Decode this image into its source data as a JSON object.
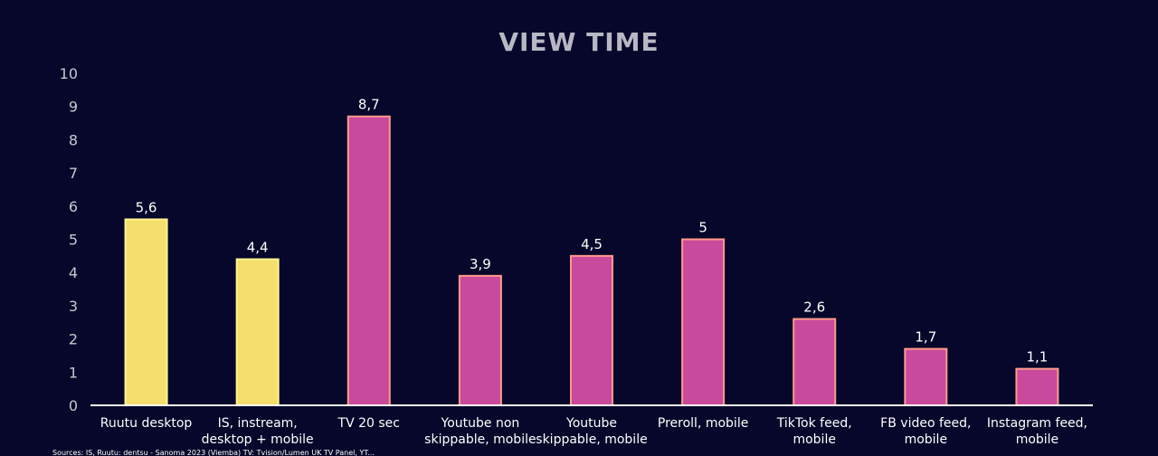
{
  "chart_data": {
    "type": "bar",
    "title": "VIEW TIME",
    "xlabel": "",
    "ylabel": "",
    "ylim": [
      0,
      10
    ],
    "yticks": [
      "0",
      "1",
      "2",
      "3",
      "4",
      "5",
      "6",
      "7",
      "8",
      "9",
      "10"
    ],
    "grid": false,
    "categories": [
      [
        "Ruutu desktop"
      ],
      [
        "IS, instream,",
        "desktop + mobile"
      ],
      [
        "TV 20 sec"
      ],
      [
        "Youtube non",
        "skippable, mobile"
      ],
      [
        "Youtube",
        "skippable, mobile"
      ],
      [
        "Preroll, mobile"
      ],
      [
        "TikTok feed,",
        "mobile"
      ],
      [
        "FB video feed,",
        "mobile"
      ],
      [
        "Instagram feed,",
        "mobile"
      ]
    ],
    "values": [
      5.6,
      4.4,
      8.7,
      3.9,
      4.5,
      5,
      2.6,
      1.7,
      1.1
    ],
    "value_labels": [
      "5,6",
      "4,4",
      "8,7",
      "3,9",
      "4,5",
      "5",
      "2,6",
      "1,7",
      "1,1"
    ],
    "bar_colors": [
      "#f4df6c",
      "#f4df6c",
      "#c94a9c",
      "#c94a9c",
      "#c94a9c",
      "#c94a9c",
      "#c94a9c",
      "#c94a9c",
      "#c94a9c"
    ],
    "bar_outline_colors": [
      "#fff38f",
      "#fff38f",
      "#ff9a8a",
      "#ff9a8a",
      "#ff9a8a",
      "#ff9a8a",
      "#ff9a8a",
      "#ff9a8a",
      "#ff9a8a"
    ],
    "source": "Sources: IS, Ruutu: dentsu - Sanoma 2023 (Viemba) TV: Tvision/Lumen UK TV Panel, YT..."
  },
  "colors": {
    "background": "#06072a",
    "title": "#b8b8c4",
    "text": "#ffffff",
    "axis": "#ffffff",
    "tick_text": "#c8c8d0"
  }
}
